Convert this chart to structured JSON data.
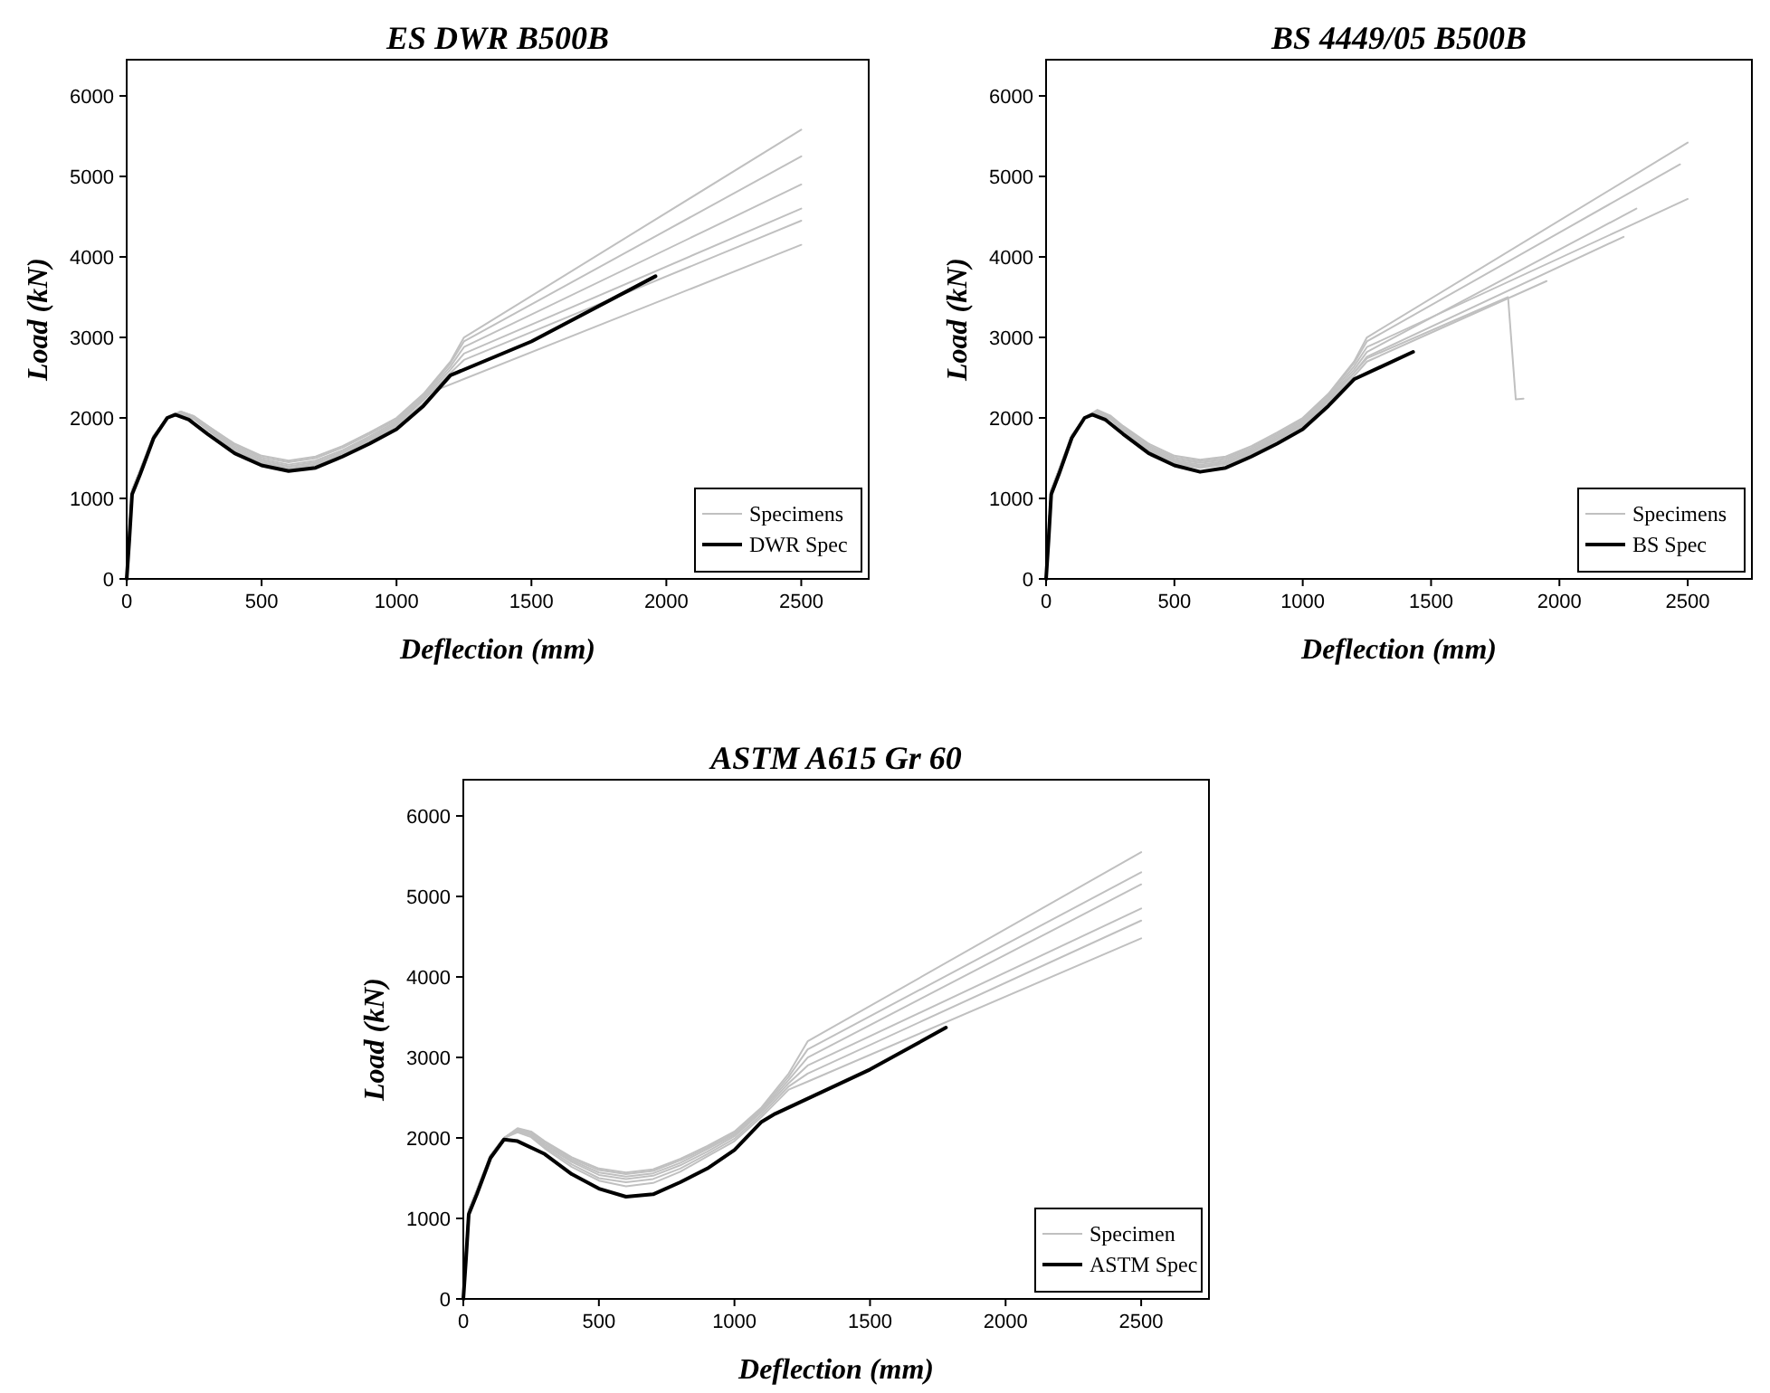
{
  "chart_data": [
    {
      "type": "line",
      "title": "ES DWR B500B",
      "xlabel": "Deflection (mm)",
      "ylabel": "Load (kN)",
      "xlim": [
        0,
        2750
      ],
      "ylim": [
        0,
        6450
      ],
      "xticks": [
        0,
        500,
        1000,
        1500,
        2000,
        2500
      ],
      "yticks": [
        0,
        1000,
        2000,
        3000,
        4000,
        5000,
        6000
      ],
      "legend": "bottom right",
      "series": [
        {
          "name": "Specimens",
          "color": "#c0c0c0",
          "x": [
            0,
            10,
            20,
            50,
            100,
            150,
            200,
            250,
            300,
            400,
            500,
            600,
            700,
            800,
            900,
            1000,
            1100,
            1200,
            1250,
            2500
          ],
          "values": [
            0,
            600,
            1100,
            1350,
            1780,
            2000,
            2080,
            2020,
            1900,
            1680,
            1530,
            1470,
            1520,
            1650,
            1820,
            2000,
            2300,
            2700,
            3000,
            5580
          ]
        },
        {
          "color": "#c0c0c0",
          "x": [
            0,
            10,
            20,
            50,
            100,
            150,
            200,
            250,
            300,
            400,
            500,
            600,
            700,
            800,
            900,
            1000,
            1100,
            1200,
            1250,
            2500
          ],
          "values": [
            0,
            600,
            1100,
            1350,
            1780,
            2000,
            2080,
            2020,
            1900,
            1670,
            1510,
            1450,
            1500,
            1630,
            1800,
            1980,
            2280,
            2680,
            2950,
            5250
          ]
        },
        {
          "color": "#c0c0c0",
          "x": [
            0,
            10,
            20,
            50,
            100,
            150,
            200,
            250,
            300,
            400,
            500,
            600,
            700,
            800,
            900,
            1000,
            1100,
            1200,
            1250,
            2500
          ],
          "values": [
            0,
            600,
            1100,
            1350,
            1780,
            2000,
            2070,
            2010,
            1880,
            1650,
            1490,
            1420,
            1470,
            1600,
            1770,
            1960,
            2260,
            2640,
            2880,
            4900
          ]
        },
        {
          "color": "#c0c0c0",
          "x": [
            0,
            10,
            20,
            50,
            100,
            150,
            200,
            250,
            300,
            400,
            500,
            600,
            700,
            800,
            900,
            1000,
            1100,
            1200,
            1250,
            2500
          ],
          "values": [
            0,
            600,
            1100,
            1350,
            1780,
            2000,
            2060,
            2000,
            1870,
            1630,
            1470,
            1400,
            1450,
            1580,
            1750,
            1940,
            2240,
            2600,
            2800,
            4600
          ]
        },
        {
          "color": "#c0c0c0",
          "x": [
            0,
            10,
            20,
            50,
            100,
            150,
            200,
            250,
            300,
            400,
            500,
            600,
            700,
            800,
            900,
            1000,
            1100,
            1200,
            1250,
            2500
          ],
          "values": [
            0,
            600,
            1100,
            1350,
            1780,
            2000,
            2050,
            1990,
            1860,
            1610,
            1450,
            1380,
            1430,
            1560,
            1730,
            1920,
            2220,
            2560,
            2720,
            4450
          ]
        },
        {
          "color": "#c0c0c0",
          "x": [
            0,
            10,
            20,
            50,
            100,
            150,
            200,
            250,
            300,
            400,
            500,
            600,
            700,
            800,
            900,
            1000,
            1100,
            1150,
            2500
          ],
          "values": [
            0,
            600,
            1100,
            1350,
            1780,
            2000,
            2040,
            1980,
            1850,
            1600,
            1440,
            1360,
            1410,
            1540,
            1710,
            1900,
            2180,
            2350,
            4150
          ]
        },
        {
          "name": "DWR Spec",
          "color": "#000000",
          "x": [
            0,
            10,
            20,
            50,
            100,
            150,
            180,
            230,
            300,
            400,
            500,
            600,
            700,
            800,
            900,
            1000,
            1100,
            1200,
            1500,
            1960
          ],
          "values": [
            0,
            500,
            1050,
            1300,
            1750,
            2000,
            2040,
            1980,
            1800,
            1560,
            1410,
            1340,
            1380,
            1520,
            1680,
            1860,
            2150,
            2530,
            2950,
            3760
          ]
        }
      ]
    },
    {
      "type": "line",
      "title": "BS 4449/05 B500B",
      "xlabel": "Deflection (mm)",
      "ylabel": "Load (kN)",
      "xlim": [
        0,
        2750
      ],
      "ylim": [
        0,
        6450
      ],
      "xticks": [
        0,
        500,
        1000,
        1500,
        2000,
        2500
      ],
      "yticks": [
        0,
        1000,
        2000,
        3000,
        4000,
        5000,
        6000
      ],
      "legend": "bottom right",
      "series": [
        {
          "name": "Specimens",
          "color": "#c0c0c0",
          "x": [
            0,
            10,
            20,
            50,
            100,
            150,
            200,
            250,
            300,
            400,
            500,
            600,
            700,
            800,
            900,
            1000,
            1100,
            1200,
            1250,
            2500
          ],
          "values": [
            0,
            600,
            1100,
            1350,
            1780,
            2000,
            2100,
            2030,
            1900,
            1680,
            1530,
            1480,
            1520,
            1650,
            1820,
            2000,
            2300,
            2700,
            3000,
            5420
          ]
        },
        {
          "color": "#c0c0c0",
          "x": [
            0,
            10,
            20,
            50,
            100,
            150,
            200,
            250,
            300,
            400,
            500,
            600,
            700,
            800,
            900,
            1000,
            1100,
            1200,
            1250,
            2470
          ],
          "values": [
            0,
            600,
            1100,
            1350,
            1780,
            2000,
            2090,
            2020,
            1890,
            1660,
            1510,
            1460,
            1500,
            1630,
            1800,
            1980,
            2280,
            2680,
            2950,
            5150
          ]
        },
        {
          "color": "#c0c0c0",
          "x": [
            0,
            10,
            20,
            50,
            100,
            150,
            200,
            250,
            300,
            400,
            500,
            600,
            700,
            800,
            900,
            1000,
            1100,
            1200,
            1250,
            2500
          ],
          "values": [
            0,
            600,
            1100,
            1350,
            1780,
            2000,
            2080,
            2010,
            1870,
            1640,
            1490,
            1440,
            1480,
            1610,
            1780,
            1960,
            2260,
            2640,
            2880,
            4720
          ]
        },
        {
          "color": "#c0c0c0",
          "x": [
            0,
            10,
            20,
            50,
            100,
            150,
            200,
            250,
            300,
            400,
            500,
            600,
            700,
            800,
            900,
            1000,
            1100,
            1200,
            1250,
            2300
          ],
          "values": [
            0,
            600,
            1100,
            1350,
            1780,
            2000,
            2070,
            2000,
            1860,
            1620,
            1470,
            1420,
            1460,
            1590,
            1760,
            1940,
            2240,
            2600,
            2820,
            4600
          ]
        },
        {
          "color": "#c0c0c0",
          "x": [
            0,
            10,
            20,
            50,
            100,
            150,
            200,
            250,
            300,
            400,
            500,
            600,
            700,
            800,
            900,
            1000,
            1100,
            1200,
            1250,
            2250
          ],
          "values": [
            0,
            600,
            1100,
            1350,
            1780,
            2000,
            2060,
            1990,
            1850,
            1600,
            1450,
            1400,
            1440,
            1570,
            1740,
            1920,
            2220,
            2560,
            2760,
            4250
          ]
        },
        {
          "color": "#c0c0c0",
          "x": [
            0,
            10,
            20,
            50,
            100,
            150,
            200,
            250,
            300,
            400,
            500,
            600,
            700,
            800,
            900,
            1000,
            1100,
            1200,
            1250,
            1950
          ],
          "values": [
            0,
            600,
            1100,
            1350,
            1780,
            2000,
            2050,
            1980,
            1840,
            1580,
            1430,
            1380,
            1420,
            1550,
            1720,
            1900,
            2200,
            2520,
            2700,
            3700
          ]
        },
        {
          "color": "#c0c0c0",
          "x": [
            0,
            10,
            20,
            50,
            100,
            150,
            200,
            250,
            300,
            400,
            500,
            600,
            700,
            800,
            900,
            1000,
            1100,
            1200,
            1250,
            1800,
            1830,
            1860
          ],
          "values": [
            0,
            600,
            1100,
            1350,
            1780,
            2000,
            2060,
            1990,
            1850,
            1600,
            1450,
            1400,
            1440,
            1570,
            1740,
            1920,
            2220,
            2560,
            2740,
            3500,
            2230,
            2240
          ]
        },
        {
          "name": "BS Spec",
          "color": "#000000",
          "x": [
            0,
            10,
            20,
            50,
            100,
            150,
            180,
            230,
            300,
            400,
            500,
            600,
            700,
            800,
            900,
            1000,
            1100,
            1200,
            1430
          ],
          "values": [
            0,
            500,
            1050,
            1300,
            1750,
            2000,
            2040,
            1980,
            1800,
            1560,
            1410,
            1330,
            1380,
            1520,
            1680,
            1860,
            2150,
            2480,
            2820
          ]
        }
      ]
    },
    {
      "type": "line",
      "title": "ASTM A615 Gr 60",
      "xlabel": "Deflection (mm)",
      "ylabel": "Load (kN)",
      "xlim": [
        0,
        2750
      ],
      "ylim": [
        0,
        6450
      ],
      "xticks": [
        0,
        500,
        1000,
        1500,
        2000,
        2500
      ],
      "yticks": [
        0,
        1000,
        2000,
        3000,
        4000,
        5000,
        6000
      ],
      "legend": "bottom right",
      "series": [
        {
          "name": "Specimen",
          "color": "#c0c0c0",
          "x": [
            0,
            10,
            20,
            50,
            100,
            150,
            200,
            250,
            300,
            400,
            500,
            600,
            700,
            800,
            900,
            1000,
            1100,
            1200,
            1270,
            2500
          ],
          "values": [
            0,
            600,
            1100,
            1350,
            1780,
            2000,
            2120,
            2080,
            1960,
            1760,
            1620,
            1570,
            1610,
            1740,
            1900,
            2080,
            2380,
            2800,
            3200,
            5550
          ]
        },
        {
          "color": "#c0c0c0",
          "x": [
            0,
            10,
            20,
            50,
            100,
            150,
            200,
            250,
            300,
            400,
            500,
            600,
            700,
            800,
            900,
            1000,
            1100,
            1200,
            1270,
            2500
          ],
          "values": [
            0,
            600,
            1100,
            1350,
            1780,
            2000,
            2110,
            2070,
            1950,
            1740,
            1600,
            1550,
            1590,
            1720,
            1880,
            2060,
            2360,
            2760,
            3100,
            5300
          ]
        },
        {
          "color": "#c0c0c0",
          "x": [
            0,
            10,
            20,
            50,
            100,
            150,
            200,
            250,
            300,
            400,
            500,
            600,
            700,
            800,
            900,
            1000,
            1100,
            1200,
            1270,
            2500
          ],
          "values": [
            0,
            600,
            1100,
            1350,
            1780,
            2000,
            2100,
            2060,
            1930,
            1720,
            1570,
            1520,
            1560,
            1690,
            1860,
            2040,
            2340,
            2720,
            3000,
            5150
          ]
        },
        {
          "color": "#c0c0c0",
          "x": [
            0,
            10,
            20,
            50,
            100,
            150,
            200,
            250,
            300,
            400,
            500,
            600,
            700,
            800,
            900,
            1000,
            1100,
            1200,
            1270,
            2500
          ],
          "values": [
            0,
            600,
            1100,
            1350,
            1780,
            2000,
            2090,
            2040,
            1910,
            1700,
            1540,
            1490,
            1530,
            1660,
            1830,
            2020,
            2320,
            2680,
            2900,
            4850
          ]
        },
        {
          "color": "#c0c0c0",
          "x": [
            0,
            10,
            20,
            50,
            100,
            150,
            200,
            250,
            300,
            400,
            500,
            600,
            700,
            800,
            900,
            1000,
            1100,
            1200,
            1270,
            2500
          ],
          "values": [
            0,
            600,
            1100,
            1350,
            1780,
            2000,
            2080,
            2030,
            1890,
            1670,
            1500,
            1450,
            1490,
            1620,
            1800,
            1990,
            2290,
            2640,
            2800,
            4700
          ]
        },
        {
          "color": "#c0c0c0",
          "x": [
            0,
            10,
            20,
            50,
            100,
            150,
            200,
            250,
            300,
            400,
            500,
            600,
            700,
            800,
            900,
            1000,
            1100,
            1200,
            1270,
            2500
          ],
          "values": [
            0,
            600,
            1100,
            1350,
            1780,
            2000,
            2070,
            2010,
            1870,
            1640,
            1470,
            1400,
            1440,
            1580,
            1770,
            1960,
            2260,
            2600,
            2700,
            4480
          ]
        },
        {
          "name": "ASTM Spec",
          "color": "#000000",
          "x": [
            0,
            10,
            20,
            50,
            100,
            150,
            200,
            300,
            400,
            500,
            600,
            700,
            800,
            900,
            1000,
            1100,
            1150,
            1500,
            1780
          ],
          "values": [
            0,
            500,
            1050,
            1300,
            1750,
            1980,
            1960,
            1800,
            1550,
            1370,
            1270,
            1300,
            1450,
            1620,
            1850,
            2200,
            2300,
            2850,
            3370
          ]
        }
      ]
    }
  ]
}
